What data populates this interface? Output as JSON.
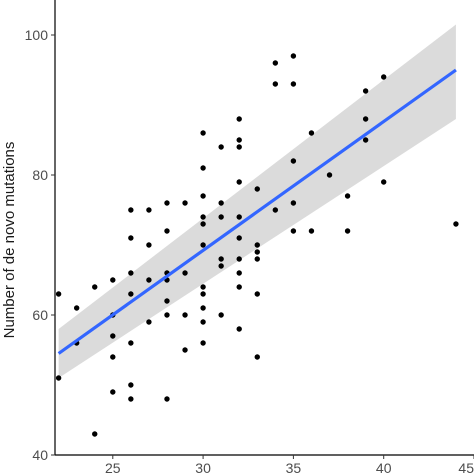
{
  "chart_data": {
    "type": "scatter",
    "title": "",
    "xlabel": "",
    "ylabel": "Number of de novo mutations",
    "xlim": [
      21.8,
      45
    ],
    "ylim": [
      40,
      105
    ],
    "xticks": [
      25,
      30,
      35,
      40,
      45
    ],
    "yticks": [
      40,
      60,
      80,
      100
    ],
    "grid": false,
    "points": [
      [
        22,
        63
      ],
      [
        22,
        51
      ],
      [
        23,
        61
      ],
      [
        23,
        56
      ],
      [
        24,
        64
      ],
      [
        24,
        43
      ],
      [
        25,
        65
      ],
      [
        25,
        60
      ],
      [
        25,
        57
      ],
      [
        25,
        54
      ],
      [
        25,
        49
      ],
      [
        26,
        75
      ],
      [
        26,
        71
      ],
      [
        26,
        66
      ],
      [
        26,
        63
      ],
      [
        26,
        56
      ],
      [
        26,
        50
      ],
      [
        26,
        48
      ],
      [
        27,
        75
      ],
      [
        27,
        70
      ],
      [
        27,
        65
      ],
      [
        27,
        59
      ],
      [
        28,
        76
      ],
      [
        28,
        72
      ],
      [
        28,
        66
      ],
      [
        28,
        65
      ],
      [
        28,
        62
      ],
      [
        28,
        60
      ],
      [
        28,
        48
      ],
      [
        29,
        76
      ],
      [
        29,
        66
      ],
      [
        29,
        60
      ],
      [
        29,
        55
      ],
      [
        30,
        86
      ],
      [
        30,
        81
      ],
      [
        30,
        77
      ],
      [
        30,
        74
      ],
      [
        30,
        73
      ],
      [
        30,
        70
      ],
      [
        30,
        64
      ],
      [
        30,
        63
      ],
      [
        30,
        61
      ],
      [
        30,
        59
      ],
      [
        30,
        56
      ],
      [
        31,
        84
      ],
      [
        31,
        76
      ],
      [
        31,
        74
      ],
      [
        31,
        68
      ],
      [
        31,
        67
      ],
      [
        31,
        60
      ],
      [
        32,
        88
      ],
      [
        32,
        85
      ],
      [
        32,
        84
      ],
      [
        32,
        79
      ],
      [
        32,
        74
      ],
      [
        32,
        71
      ],
      [
        32,
        68
      ],
      [
        32,
        66
      ],
      [
        32,
        64
      ],
      [
        32,
        58
      ],
      [
        33,
        78
      ],
      [
        33,
        70
      ],
      [
        33,
        69
      ],
      [
        33,
        68
      ],
      [
        33,
        63
      ],
      [
        33,
        54
      ],
      [
        34,
        96
      ],
      [
        34,
        93
      ],
      [
        34,
        75
      ],
      [
        35,
        97
      ],
      [
        35,
        93
      ],
      [
        35,
        82
      ],
      [
        35,
        76
      ],
      [
        35,
        72
      ],
      [
        36,
        86
      ],
      [
        36,
        72
      ],
      [
        37,
        80
      ],
      [
        38,
        77
      ],
      [
        38,
        72
      ],
      [
        39,
        92
      ],
      [
        39,
        88
      ],
      [
        39,
        85
      ],
      [
        40,
        94
      ],
      [
        40,
        79
      ],
      [
        44,
        73
      ]
    ],
    "fit": {
      "type": "linear",
      "color": "#3366ff",
      "x": [
        22,
        44
      ],
      "y": [
        54.5,
        95
      ],
      "ci_lower": [
        51.0,
        88.0
      ],
      "ci_upper": [
        58.0,
        101.5
      ],
      "ci_fill": "#d9d9d9"
    },
    "point_color": "#000000"
  }
}
